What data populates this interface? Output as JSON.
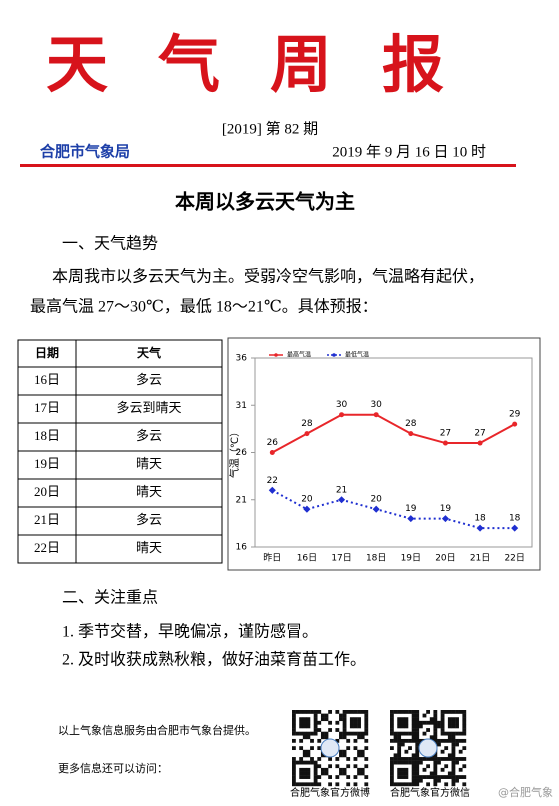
{
  "header": {
    "title": "天气周报",
    "issue": "[2019]  第 82 期",
    "agency": "合肥市气象局",
    "time": "2019 年 9 月 16 日 10 时"
  },
  "headline": "本周以多云天气为主",
  "section1": {
    "heading": "一、天气趋势",
    "lines": [
      "本周我市以多云天气为主。受弱冷空气影响，气温略有起伏，",
      "最高气温 27～30℃，最低 18～21℃。具体预报："
    ]
  },
  "table": {
    "header": [
      "日期",
      "天气"
    ],
    "rows": [
      [
        "16日",
        "多云"
      ],
      [
        "17日",
        "多云到晴天"
      ],
      [
        "18日",
        "多云"
      ],
      [
        "19日",
        "晴天"
      ],
      [
        "20日",
        "晴天"
      ],
      [
        "21日",
        "多云"
      ],
      [
        "22日",
        "晴天"
      ]
    ]
  },
  "chart_data": {
    "type": "line",
    "y_label": "气温（℃）",
    "categories": [
      "昨日",
      "16日",
      "17日",
      "18日",
      "19日",
      "20日",
      "21日",
      "22日"
    ],
    "series": [
      {
        "name": "最高气温",
        "color": "#e8262a",
        "values": [
          26,
          28,
          30,
          30,
          28,
          27,
          27,
          29
        ]
      },
      {
        "name": "最低气温",
        "color": "#1f2fd0",
        "values": [
          22,
          20,
          21,
          20,
          19,
          19,
          18,
          18
        ]
      }
    ],
    "ylim": [
      16,
      36
    ],
    "yticks": [
      16,
      21,
      26,
      31,
      36
    ],
    "legend": "upper left"
  },
  "section2": {
    "heading": "二、关注重点",
    "items": [
      "1. 季节交替，早晚偏凉，谨防感冒。",
      "2. 及时收获成熟秋粮，做好油菜育苗工作。"
    ]
  },
  "footer": {
    "note": "以上气象信息服务由合肥市气象台提供。",
    "visit": "更多信息还可以访问：",
    "qr_labels": [
      "合肥气象官方微博",
      "合肥气象官方微信"
    ],
    "watermark": "@合肥气象"
  }
}
